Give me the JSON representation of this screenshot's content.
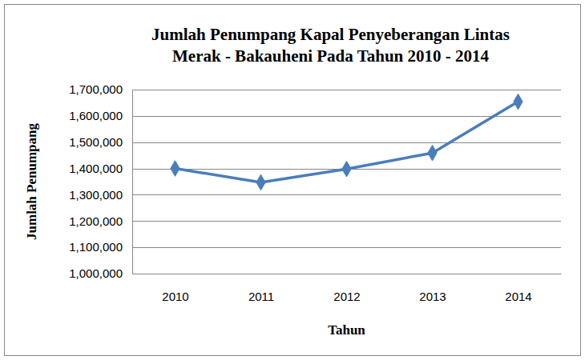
{
  "chart_data": {
    "type": "line",
    "title": [
      "Jumlah Penumpang Kapal Penyeberangan Lintas",
      "Merak - Bakauheni  Pada Tahun 2010 - 2014"
    ],
    "x_label": "Tahun",
    "y_label": "Jumlah Penumpang",
    "categories": [
      "2010",
      "2011",
      "2012",
      "2013",
      "2014"
    ],
    "values": [
      1400000,
      1347000,
      1398000,
      1459000,
      1654000
    ],
    "color": "#4a7ebb",
    "marker": "diamond",
    "ylim": [
      1000000,
      1700000
    ],
    "yticks": [
      {
        "value": 1000000,
        "label": "1,000,000"
      },
      {
        "value": 1100000,
        "label": "1,100,000"
      },
      {
        "value": 1200000,
        "label": "1,200,000"
      },
      {
        "value": 1300000,
        "label": "1,300,000"
      },
      {
        "value": 1400000,
        "label": "1,400,000"
      },
      {
        "value": 1500000,
        "label": "1,500,000"
      },
      {
        "value": 1600000,
        "label": "1,600,000"
      },
      {
        "value": 1700000,
        "label": "1,700,000"
      }
    ],
    "grid": true
  }
}
